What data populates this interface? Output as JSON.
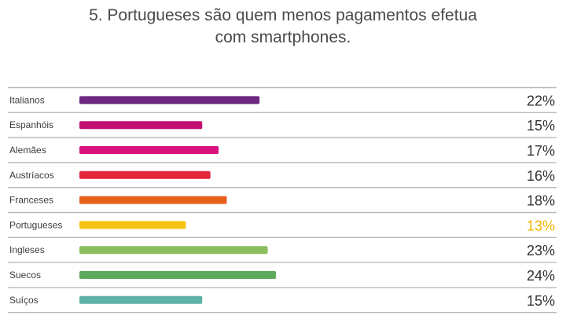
{
  "chart_data": {
    "type": "bar",
    "orientation": "horizontal",
    "title_lines": [
      "5. Portugueses são quem menos pagamentos efetua",
      "com smartphones."
    ],
    "categories": [
      "Italianos",
      "Espanhóis",
      "Alemães",
      "Austríacos",
      "Franceses",
      "Portugueses",
      "Ingleses",
      "Suecos",
      "Suíços"
    ],
    "values": [
      22,
      15,
      17,
      16,
      18,
      13,
      23,
      24,
      15
    ],
    "value_labels": [
      "22%",
      "15%",
      "17%",
      "16%",
      "18%",
      "13%",
      "23%",
      "24%",
      "15%"
    ],
    "bar_colors": [
      "#6e2882",
      "#c20f72",
      "#d9137d",
      "#e3263a",
      "#e8601c",
      "#f7c313",
      "#8bbe5e",
      "#5daa5c",
      "#5fb2a8"
    ],
    "value_label_colors": [
      "#333333",
      "#333333",
      "#333333",
      "#333333",
      "#333333",
      "#f0b400",
      "#333333",
      "#333333",
      "#333333"
    ],
    "xlim": [
      0,
      24
    ],
    "grid": "horizontal separators between rows",
    "legend": "none"
  }
}
